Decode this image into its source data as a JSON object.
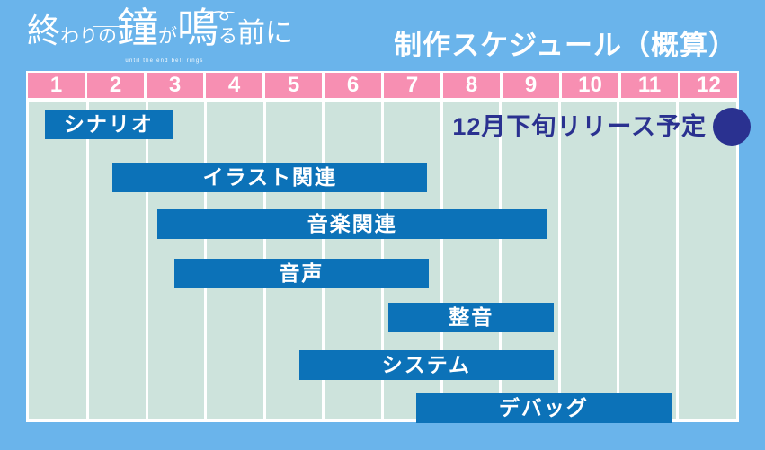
{
  "logo": {
    "title_parts": [
      "終",
      "わりの",
      "鐘",
      "が",
      "鳴",
      "る",
      "前に"
    ],
    "title": "終わりの鐘が鳴る前に",
    "subtitle": "until the end bell rings"
  },
  "header": {
    "title": "制作スケジュール（概算）"
  },
  "annotation": {
    "label": "12月下旬リリース予定",
    "marker": "filled-circle"
  },
  "colors": {
    "page_background": "#6ab4eb",
    "chart_background": "#cde3dc",
    "month_header_pink": "#f78fb2",
    "bar_blue": "#0c72b8",
    "accent_navy": "#2a3190",
    "text_white": "#ffffff"
  },
  "chart_data": {
    "type": "bar",
    "variant": "gantt-schedule",
    "title": "制作スケジュール（概算）",
    "x_axis": {
      "unit": "month",
      "ticks": [
        "1",
        "2",
        "3",
        "4",
        "5",
        "6",
        "7",
        "8",
        "9",
        "10",
        "11",
        "12"
      ],
      "range": [
        0,
        12
      ]
    },
    "grid": "vertical-white-lines",
    "legend": false,
    "tasks": [
      {
        "label": "シナリオ",
        "start_month": 0.27,
        "end_month": 2.44
      },
      {
        "label": "イラスト関連",
        "start_month": 1.42,
        "end_month": 6.76
      },
      {
        "label": "音楽関連",
        "start_month": 2.18,
        "end_month": 8.79
      },
      {
        "label": "音声",
        "start_month": 2.47,
        "end_month": 6.78
      },
      {
        "label": "整音",
        "start_month": 6.1,
        "end_month": 8.91
      },
      {
        "label": "システム",
        "start_month": 4.59,
        "end_month": 8.9
      },
      {
        "label": "デバッグ",
        "start_month": 6.57,
        "end_month": 10.9
      }
    ],
    "annotations": [
      {
        "label": "12月下旬リリース予定",
        "marker": "filled-circle",
        "position": "top-right"
      }
    ]
  }
}
